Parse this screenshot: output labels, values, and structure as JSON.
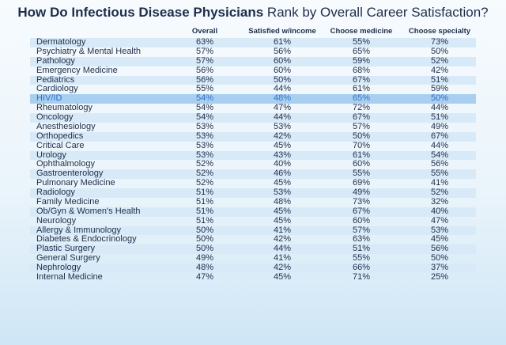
{
  "title": {
    "bold": "How Do Infectious Disease Physicians",
    "rest": " Rank by Overall Career Satisfaction?"
  },
  "colors": {
    "title": "#1d2e4a",
    "row_stripe": "#d8eaf7",
    "highlight_bg": "#a9cff0",
    "highlight_text": "#2a6fc9"
  },
  "chart_data": {
    "type": "table",
    "title": "How Do Infectious Disease Physicians Rank by Overall Career Satisfaction?",
    "columns": [
      "Overall",
      "Satisfied w/income",
      "Choose medicine",
      "Choose specialty"
    ],
    "highlighted_row": "HIV/ID",
    "rows": [
      {
        "specialty": "Dermatology",
        "values": [
          "63%",
          "61%",
          "55%",
          "73%"
        ]
      },
      {
        "specialty": "Psychiatry & Mental Health",
        "values": [
          "57%",
          "56%",
          "65%",
          "50%"
        ]
      },
      {
        "specialty": "Pathology",
        "values": [
          "57%",
          "60%",
          "59%",
          "52%"
        ]
      },
      {
        "specialty": "Emergency Medicine",
        "values": [
          "56%",
          "60%",
          "68%",
          "42%"
        ]
      },
      {
        "specialty": "Pediatrics",
        "values": [
          "56%",
          "50%",
          "67%",
          "51%"
        ]
      },
      {
        "specialty": "Cardiology",
        "values": [
          "55%",
          "44%",
          "61%",
          "59%"
        ]
      },
      {
        "specialty": "HIV/ID",
        "values": [
          "54%",
          "48%",
          "65%",
          "50%"
        ]
      },
      {
        "specialty": "Rheumatology",
        "values": [
          "54%",
          "47%",
          "72%",
          "44%"
        ]
      },
      {
        "specialty": "Oncology",
        "values": [
          "54%",
          "44%",
          "67%",
          "51%"
        ]
      },
      {
        "specialty": "Anesthesiology",
        "values": [
          "53%",
          "53%",
          "57%",
          "49%"
        ]
      },
      {
        "specialty": "Orthopedics",
        "values": [
          "53%",
          "42%",
          "50%",
          "67%"
        ]
      },
      {
        "specialty": "Critical Care",
        "values": [
          "53%",
          "45%",
          "70%",
          "44%"
        ]
      },
      {
        "specialty": "Urology",
        "values": [
          "53%",
          "43%",
          "61%",
          "54%"
        ]
      },
      {
        "specialty": "Ophthalmology",
        "values": [
          "52%",
          "40%",
          "60%",
          "56%"
        ]
      },
      {
        "specialty": "Gastroenterology",
        "values": [
          "52%",
          "46%",
          "55%",
          "55%"
        ]
      },
      {
        "specialty": "Pulmonary Medicine",
        "values": [
          "52%",
          "45%",
          "69%",
          "41%"
        ]
      },
      {
        "specialty": "Radiology",
        "values": [
          "51%",
          "53%",
          "49%",
          "52%"
        ]
      },
      {
        "specialty": "Family Medicine",
        "values": [
          "51%",
          "48%",
          "73%",
          "32%"
        ]
      },
      {
        "specialty": "Ob/Gyn & Women's Health",
        "values": [
          "51%",
          "45%",
          "67%",
          "40%"
        ]
      },
      {
        "specialty": "Neurology",
        "values": [
          "51%",
          "45%",
          "60%",
          "47%"
        ]
      },
      {
        "specialty": "Allergy & Immunology",
        "values": [
          "50%",
          "41%",
          "57%",
          "53%"
        ]
      },
      {
        "specialty": "Diabetes & Endocrinology",
        "values": [
          "50%",
          "42%",
          "63%",
          "45%"
        ]
      },
      {
        "specialty": "Plastic Surgery",
        "values": [
          "50%",
          "44%",
          "51%",
          "56%"
        ]
      },
      {
        "specialty": "General Surgery",
        "values": [
          "49%",
          "41%",
          "55%",
          "50%"
        ]
      },
      {
        "specialty": "Nephrology",
        "values": [
          "48%",
          "42%",
          "66%",
          "37%"
        ]
      },
      {
        "specialty": "Internal Medicine",
        "values": [
          "47%",
          "45%",
          "71%",
          "25%"
        ]
      }
    ]
  }
}
